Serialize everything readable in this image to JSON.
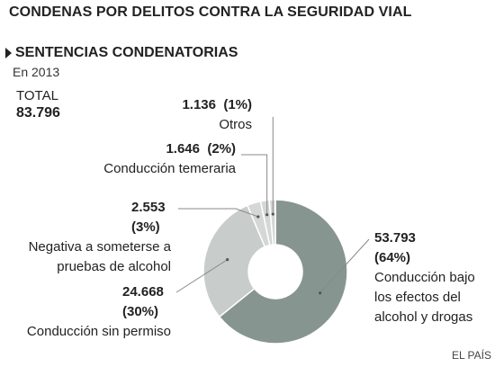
{
  "header": {
    "title": "CONDENAS POR DELITOS CONTRA LA SEGURIDAD VIAL",
    "subtitle": "SENTENCIAS CONDENATORIAS",
    "year": "En 2013",
    "total_label": "TOTAL",
    "total_value": "83.796"
  },
  "source": "EL PAÍS",
  "colors": {
    "main_slice": "#879590",
    "secondary_slice": "#c8ccca",
    "small_slices": "#d4d7d5",
    "separator": "#ffffff",
    "leader": "#888888"
  },
  "chart_data": {
    "type": "pie",
    "donut": true,
    "total": "83.796",
    "slices": [
      {
        "name": "Conducción bajo los efectos del alcohol y drogas",
        "value_label": "53.793",
        "pct_label": "(64%)",
        "value": 53793,
        "color": "#879590"
      },
      {
        "name": "Conducción sin permiso",
        "value_label": "24.668",
        "pct_label": "(30%)",
        "value": 24668,
        "color": "#c8ccca"
      },
      {
        "name": "Negativa a someterse a pruebas de alcohol",
        "value_label": "2.553",
        "pct_label": "(3%)",
        "value": 2553,
        "color": "#d4d7d5"
      },
      {
        "name": "Conducción temeraria",
        "value_label": "1.646",
        "pct_label": "(2%)",
        "value": 1646,
        "color": "#d4d7d5"
      },
      {
        "name": "Otros",
        "value_label": "1.136",
        "pct_label": "(1%)",
        "value": 1136,
        "color": "#d4d7d5"
      }
    ]
  },
  "labels": {
    "otros": {
      "num": "1.136",
      "pct": "(1%)",
      "text": "Otros"
    },
    "temeraria": {
      "num": "1.646",
      "pct": "(2%)",
      "text": "Conducción temeraria"
    },
    "negativa": {
      "num": "2.553",
      "pct": "(3%)",
      "line1": "Negativa a someterse a",
      "line2": "pruebas de alcohol"
    },
    "sinpermiso": {
      "num": "24.668",
      "pct": "(30%)",
      "text": "Conducción sin permiso"
    },
    "alcohol": {
      "num": "53.793",
      "pct": "(64%)",
      "line1": "Conducción bajo",
      "line2": "los efectos del",
      "line3": "alcohol y drogas"
    }
  }
}
